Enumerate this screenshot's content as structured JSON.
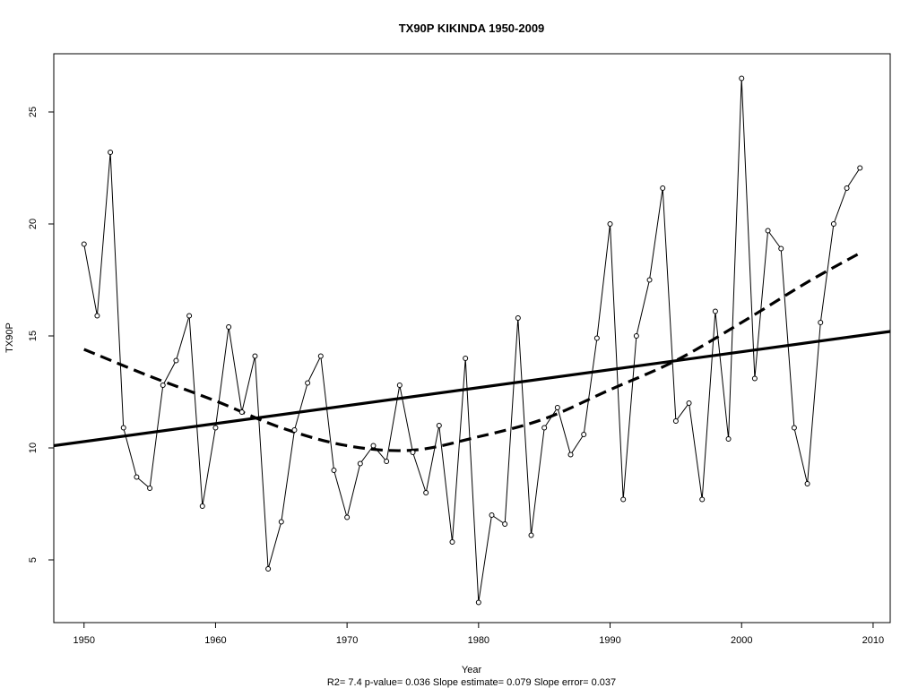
{
  "chart_data": {
    "type": "line",
    "title": "TX90P    KIKINDA 1950-2009",
    "xlabel": "Year",
    "ylabel": "TX90P",
    "stats": "R2= 7.4  p-value= 0.036  Slope estimate= 0.079  Slope error= 0.037",
    "xlim": [
      1947.7,
      2011.3
    ],
    "ylim": [
      2.2,
      27.6
    ],
    "xticks": [
      1950,
      1960,
      1970,
      1980,
      1990,
      2000,
      2010
    ],
    "yticks": [
      5,
      10,
      15,
      20,
      25
    ],
    "grid": false,
    "legend": "none",
    "series": [
      {
        "style": "line-with-points",
        "x": [
          1950,
          1951,
          1952,
          1953,
          1954,
          1955,
          1956,
          1957,
          1958,
          1959,
          1960,
          1961,
          1962,
          1963,
          1964,
          1965,
          1966,
          1967,
          1968,
          1969,
          1970,
          1971,
          1972,
          1973,
          1974,
          1975,
          1976,
          1977,
          1978,
          1979,
          1980,
          1981,
          1982,
          1983,
          1984,
          1985,
          1986,
          1987,
          1988,
          1989,
          1990,
          1991,
          1992,
          1993,
          1994,
          1995,
          1996,
          1997,
          1998,
          1999,
          2000,
          2001,
          2002,
          2003,
          2004,
          2005,
          2006,
          2007,
          2008,
          2009
        ],
        "values": [
          19.1,
          15.9,
          23.2,
          10.9,
          8.7,
          8.2,
          12.8,
          13.9,
          15.9,
          7.4,
          10.9,
          15.4,
          11.6,
          14.1,
          4.6,
          6.7,
          10.8,
          12.9,
          14.1,
          9.0,
          6.9,
          9.3,
          10.1,
          9.4,
          12.8,
          9.8,
          8.0,
          11.0,
          5.8,
          14.0,
          3.1,
          7.0,
          6.6,
          15.8,
          6.1,
          10.9,
          11.8,
          9.7,
          10.6,
          14.9,
          20.0,
          7.7,
          15.0,
          17.5,
          21.6,
          11.2,
          12.0,
          7.7,
          16.1,
          10.4,
          26.5,
          13.1,
          19.7,
          18.9,
          10.9,
          8.4,
          15.6,
          20.0,
          21.6,
          22.5
        ]
      },
      {
        "style": "linear-trend",
        "x": [
          1947.7,
          2011.3
        ],
        "values": [
          10.1,
          15.2
        ]
      },
      {
        "style": "smooth-dashed",
        "x": [
          1950,
          1955,
          1960,
          1965,
          1970,
          1975,
          1980,
          1985,
          1990,
          1995,
          2000,
          2005,
          2009
        ],
        "values": [
          14.4,
          13.2,
          12.1,
          10.9,
          10.1,
          9.9,
          10.5,
          11.3,
          12.6,
          13.9,
          15.6,
          17.4,
          18.7
        ]
      }
    ]
  }
}
